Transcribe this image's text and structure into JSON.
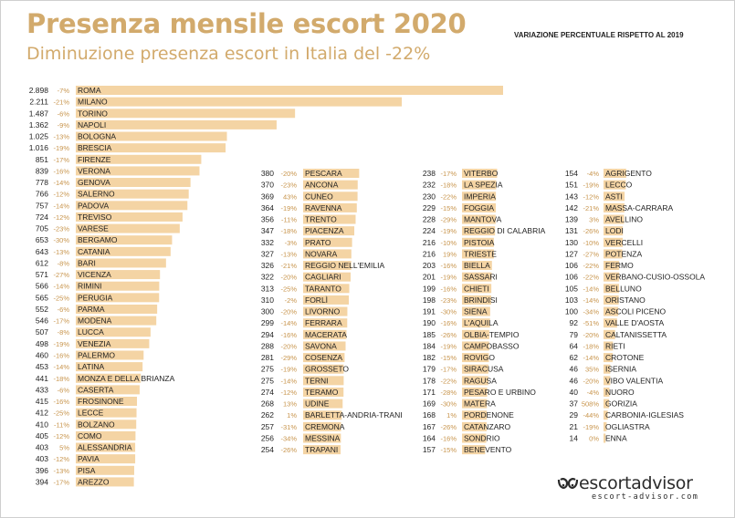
{
  "header": {
    "title": "Presenza mensile escort 2020",
    "subtitle": "Diminuzione presenza escort in Italia del -22%",
    "note": "VARIAZIONE PERCENTUALE RISPETTO AL 2019"
  },
  "logo": {
    "name": "escortadvisor",
    "url": "escort-advisor.com",
    "icon": "breasts-logo-icon"
  },
  "colors": {
    "bar": "#f4d4a4",
    "title": "#d2aa6c",
    "percent": "#c8954d",
    "text": "#1f1f1f"
  },
  "chart_data": {
    "type": "bar",
    "orientation": "horizontal",
    "scale_max_value": 2898,
    "columns": [
      {
        "rows": [
          {
            "value": "2.898",
            "pct": "-7%",
            "city": "ROMA",
            "v": 2898
          },
          {
            "value": "2.211",
            "pct": "-21%",
            "city": "MILANO",
            "v": 2211
          },
          {
            "value": "1.487",
            "pct": "-6%",
            "city": "TORINO",
            "v": 1487
          },
          {
            "value": "1.362",
            "pct": "-9%",
            "city": "NAPOLI",
            "v": 1362
          },
          {
            "value": "1.025",
            "pct": "-13%",
            "city": "BOLOGNA",
            "v": 1025
          },
          {
            "value": "1.016",
            "pct": "-19%",
            "city": "BRESCIA",
            "v": 1016
          },
          {
            "value": "851",
            "pct": "-17%",
            "city": "FIRENZE",
            "v": 851
          },
          {
            "value": "839",
            "pct": "-16%",
            "city": "VERONA",
            "v": 839
          },
          {
            "value": "778",
            "pct": "-14%",
            "city": "GENOVA",
            "v": 778
          },
          {
            "value": "766",
            "pct": "-12%",
            "city": "SALERNO",
            "v": 766
          },
          {
            "value": "757",
            "pct": "-14%",
            "city": "PADOVA",
            "v": 757
          },
          {
            "value": "724",
            "pct": "-12%",
            "city": "TREVISO",
            "v": 724
          },
          {
            "value": "705",
            "pct": "-23%",
            "city": "VARESE",
            "v": 705
          },
          {
            "value": "653",
            "pct": "-30%",
            "city": "BERGAMO",
            "v": 653
          },
          {
            "value": "643",
            "pct": "-13%",
            "city": "CATANIA",
            "v": 643
          },
          {
            "value": "612",
            "pct": "-8%",
            "city": "BARI",
            "v": 612
          },
          {
            "value": "571",
            "pct": "-27%",
            "city": "VICENZA",
            "v": 571
          },
          {
            "value": "566",
            "pct": "-14%",
            "city": "RIMINI",
            "v": 566
          },
          {
            "value": "565",
            "pct": "-25%",
            "city": "PERUGIA",
            "v": 565
          },
          {
            "value": "552",
            "pct": "-6%",
            "city": "PARMA",
            "v": 552
          },
          {
            "value": "546",
            "pct": "-17%",
            "city": "MODENA",
            "v": 546
          },
          {
            "value": "507",
            "pct": "-8%",
            "city": "LUCCA",
            "v": 507
          },
          {
            "value": "498",
            "pct": "-19%",
            "city": "VENEZIA",
            "v": 498
          },
          {
            "value": "460",
            "pct": "-16%",
            "city": "PALERMO",
            "v": 460
          },
          {
            "value": "453",
            "pct": "-14%",
            "city": "LATINA",
            "v": 453
          },
          {
            "value": "441",
            "pct": "-18%",
            "city": "MONZA E DELLA BRIANZA",
            "v": 441
          },
          {
            "value": "433",
            "pct": "-6%",
            "city": "CASERTA",
            "v": 433
          },
          {
            "value": "415",
            "pct": "-16%",
            "city": "FROSINONE",
            "v": 415
          },
          {
            "value": "412",
            "pct": "-25%",
            "city": "LECCE",
            "v": 412
          },
          {
            "value": "410",
            "pct": "-11%",
            "city": "BOLZANO",
            "v": 410
          },
          {
            "value": "405",
            "pct": "-12%",
            "city": "COMO",
            "v": 405
          },
          {
            "value": "403",
            "pct": "5%",
            "city": "ALESSANDRIA",
            "v": 403
          },
          {
            "value": "403",
            "pct": "-12%",
            "city": "PAVIA",
            "v": 403
          },
          {
            "value": "396",
            "pct": "-13%",
            "city": "PISA",
            "v": 396
          },
          {
            "value": "394",
            "pct": "-17%",
            "city": "AREZZO",
            "v": 394
          }
        ]
      },
      {
        "rows": [
          {
            "value": "380",
            "pct": "-20%",
            "city": "PESCARA",
            "v": 380
          },
          {
            "value": "370",
            "pct": "-23%",
            "city": "ANCONA",
            "v": 370
          },
          {
            "value": "369",
            "pct": "43%",
            "city": "CUNEO",
            "v": 369
          },
          {
            "value": "364",
            "pct": "-19%",
            "city": "RAVENNA",
            "v": 364
          },
          {
            "value": "356",
            "pct": "-11%",
            "city": "TRENTO",
            "v": 356
          },
          {
            "value": "347",
            "pct": "-18%",
            "city": "PIACENZA",
            "v": 347
          },
          {
            "value": "332",
            "pct": "-3%",
            "city": "PRATO",
            "v": 332
          },
          {
            "value": "327",
            "pct": "-13%",
            "city": "NOVARA",
            "v": 327
          },
          {
            "value": "326",
            "pct": "-21%",
            "city": "REGGIO NELL'EMILIA",
            "v": 326
          },
          {
            "value": "322",
            "pct": "-20%",
            "city": "CAGLIARI",
            "v": 322
          },
          {
            "value": "313",
            "pct": "-25%",
            "city": "TARANTO",
            "v": 313
          },
          {
            "value": "310",
            "pct": "-2%",
            "city": "FORLÌ",
            "v": 310
          },
          {
            "value": "300",
            "pct": "-20%",
            "city": "LIVORNO",
            "v": 300
          },
          {
            "value": "299",
            "pct": "-14%",
            "city": "FERRARA",
            "v": 299
          },
          {
            "value": "294",
            "pct": "-16%",
            "city": "MACERATA",
            "v": 294
          },
          {
            "value": "288",
            "pct": "-20%",
            "city": "SAVONA",
            "v": 288
          },
          {
            "value": "281",
            "pct": "-29%",
            "city": "COSENZA",
            "v": 281
          },
          {
            "value": "275",
            "pct": "-19%",
            "city": "GROSSETO",
            "v": 275
          },
          {
            "value": "275",
            "pct": "-14%",
            "city": "TERNI",
            "v": 275
          },
          {
            "value": "274",
            "pct": "-12%",
            "city": "TERAMO",
            "v": 274
          },
          {
            "value": "268",
            "pct": "13%",
            "city": "UDINE",
            "v": 268
          },
          {
            "value": "262",
            "pct": "1%",
            "city": "BARLETTA-ANDRIA-TRANI",
            "v": 262
          },
          {
            "value": "257",
            "pct": "-31%",
            "city": "CREMONA",
            "v": 257
          },
          {
            "value": "256",
            "pct": "-34%",
            "city": "MESSINA",
            "v": 256
          },
          {
            "value": "254",
            "pct": "-26%",
            "city": "TRAPANI",
            "v": 254
          }
        ]
      },
      {
        "rows": [
          {
            "value": "238",
            "pct": "-17%",
            "city": "VITERBO",
            "v": 238
          },
          {
            "value": "232",
            "pct": "-18%",
            "city": "LA SPEZIA",
            "v": 232
          },
          {
            "value": "230",
            "pct": "-22%",
            "city": "IMPERIA",
            "v": 230
          },
          {
            "value": "229",
            "pct": "-15%",
            "city": "FOGGIA",
            "v": 229
          },
          {
            "value": "228",
            "pct": "-29%",
            "city": "MANTOVA",
            "v": 228
          },
          {
            "value": "224",
            "pct": "-19%",
            "city": "REGGIO DI CALABRIA",
            "v": 224
          },
          {
            "value": "216",
            "pct": "-10%",
            "city": "PISTOIA",
            "v": 216
          },
          {
            "value": "216",
            "pct": "19%",
            "city": "TRIESTE",
            "v": 216
          },
          {
            "value": "203",
            "pct": "-16%",
            "city": "BIELLA",
            "v": 203
          },
          {
            "value": "201",
            "pct": "-19%",
            "city": "SASSARI",
            "v": 201
          },
          {
            "value": "199",
            "pct": "-16%",
            "city": "CHIETI",
            "v": 199
          },
          {
            "value": "198",
            "pct": "-23%",
            "city": "BRINDISI",
            "v": 198
          },
          {
            "value": "191",
            "pct": "-30%",
            "city": "SIENA",
            "v": 191
          },
          {
            "value": "190",
            "pct": "-16%",
            "city": "L'AQUILA",
            "v": 190
          },
          {
            "value": "185",
            "pct": "-26%",
            "city": "OLBIA-TEMPIO",
            "v": 185
          },
          {
            "value": "184",
            "pct": "-19%",
            "city": "CAMPOBASSO",
            "v": 184
          },
          {
            "value": "182",
            "pct": "-15%",
            "city": "ROVIGO",
            "v": 182
          },
          {
            "value": "179",
            "pct": "-17%",
            "city": "SIRACUSA",
            "v": 179
          },
          {
            "value": "178",
            "pct": "-22%",
            "city": "RAGUSA",
            "v": 178
          },
          {
            "value": "171",
            "pct": "-28%",
            "city": "PESARO E URBINO",
            "v": 171
          },
          {
            "value": "169",
            "pct": "-30%",
            "city": "MATERA",
            "v": 169
          },
          {
            "value": "168",
            "pct": "1%",
            "city": "PORDENONE",
            "v": 168
          },
          {
            "value": "167",
            "pct": "-26%",
            "city": "CATANZARO",
            "v": 167
          },
          {
            "value": "164",
            "pct": "-16%",
            "city": "SONDRIO",
            "v": 164
          },
          {
            "value": "157",
            "pct": "-15%",
            "city": "BENEVENTO",
            "v": 157
          }
        ]
      },
      {
        "rows": [
          {
            "value": "154",
            "pct": "-4%",
            "city": "AGRIGENTO",
            "v": 154
          },
          {
            "value": "151",
            "pct": "-19%",
            "city": "LECCO",
            "v": 151
          },
          {
            "value": "143",
            "pct": "-12%",
            "city": "ASTI",
            "v": 143
          },
          {
            "value": "142",
            "pct": "-21%",
            "city": "MASSA-CARRARA",
            "v": 142
          },
          {
            "value": "139",
            "pct": "3%",
            "city": "AVELLINO",
            "v": 139
          },
          {
            "value": "131",
            "pct": "-26%",
            "city": "LODI",
            "v": 131
          },
          {
            "value": "130",
            "pct": "-10%",
            "city": "VERCELLI",
            "v": 130
          },
          {
            "value": "127",
            "pct": "-27%",
            "city": "POTENZA",
            "v": 127
          },
          {
            "value": "106",
            "pct": "-22%",
            "city": "FERMO",
            "v": 106
          },
          {
            "value": "106",
            "pct": "-22%",
            "city": "VERBANO-CUSIO-OSSOLA",
            "v": 106
          },
          {
            "value": "105",
            "pct": "-14%",
            "city": "BELLUNO",
            "v": 105
          },
          {
            "value": "103",
            "pct": "-14%",
            "city": "ORISTANO",
            "v": 103
          },
          {
            "value": "100",
            "pct": "-34%",
            "city": "ASCOLI PICENO",
            "v": 100
          },
          {
            "value": "92",
            "pct": "-51%",
            "city": "VALLE D'AOSTA",
            "v": 92
          },
          {
            "value": "79",
            "pct": "-20%",
            "city": "CALTANISSETTA",
            "v": 79
          },
          {
            "value": "64",
            "pct": "-18%",
            "city": "RIETI",
            "v": 64
          },
          {
            "value": "62",
            "pct": "-14%",
            "city": "CROTONE",
            "v": 62
          },
          {
            "value": "46",
            "pct": "35%",
            "city": "ISERNIA",
            "v": 46
          },
          {
            "value": "46",
            "pct": "-20%",
            "city": "VIBO VALENTIA",
            "v": 46
          },
          {
            "value": "40",
            "pct": "-4%",
            "city": "NUORO",
            "v": 40
          },
          {
            "value": "37",
            "pct": "508%",
            "city": "GORIZIA",
            "v": 37
          },
          {
            "value": "29",
            "pct": "-44%",
            "city": "CARBONIA-IGLESIAS",
            "v": 29
          },
          {
            "value": "21",
            "pct": "-19%",
            "city": "OGLIASTRA",
            "v": 21
          },
          {
            "value": "14",
            "pct": "0%",
            "city": "ENNA",
            "v": 14
          }
        ]
      }
    ]
  }
}
